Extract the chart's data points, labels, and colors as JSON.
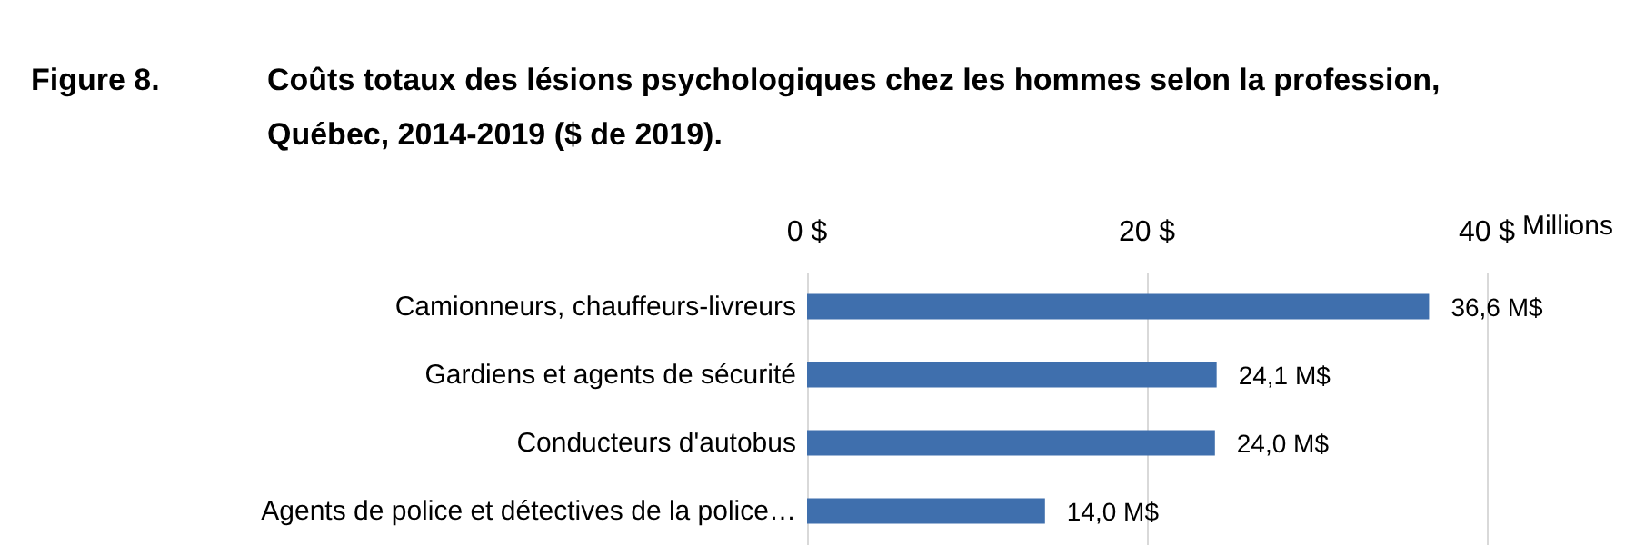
{
  "chart_data": {
    "type": "bar",
    "orientation": "horizontal",
    "title": "Coûts totaux des lésions psychologiques chez les hommes selon la profession, Québec, 2014-2019 ($ de 2019).",
    "annotations": [
      "Figure 8."
    ],
    "xlabel": "Millions",
    "categories": [
      "Camionneurs, chauffeurs-livreurs",
      "Gardiens et agents de sécurité",
      "Conducteurs d'autobus",
      "Agents de police et détectives de la police…"
    ],
    "values": [
      36.6,
      24.1,
      24.0,
      14.0
    ],
    "value_labels": [
      "36,6 M$",
      "24,1 M$",
      "24,0 M$",
      "14,0 M$"
    ],
    "color": "#3f6fad",
    "xlim": [
      0,
      40
    ],
    "xticks": [
      {
        "value": 0,
        "label": "0 $"
      },
      {
        "value": 20,
        "label": "20 $"
      },
      {
        "value": 40,
        "label": "40 $"
      }
    ],
    "grid": "x"
  }
}
